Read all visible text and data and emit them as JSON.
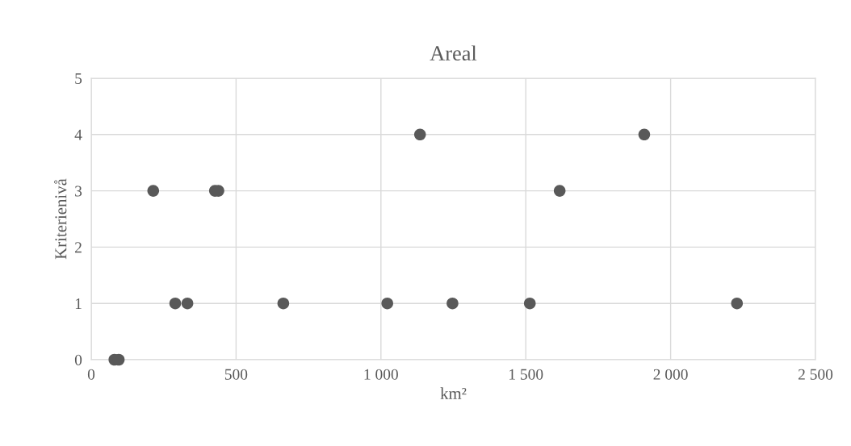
{
  "chart_data": {
    "type": "scatter",
    "title": "Areal",
    "xlabel": "km²",
    "ylabel": "Kriterienivå",
    "x": [
      80,
      95,
      214,
      427,
      439,
      290,
      332,
      663,
      1022,
      1135,
      1909,
      1617,
      1247,
      1514,
      2229
    ],
    "values": [
      0,
      0,
      3,
      3,
      3,
      1,
      1,
      1,
      1,
      4,
      4,
      3,
      1,
      1,
      1
    ],
    "color": "#595959",
    "marker": "circle",
    "xlim": [
      0,
      2500
    ],
    "xticks": [
      0,
      {
        "value": 500,
        "label": "500"
      },
      {
        "value": 1000,
        "label": "1 000"
      },
      {
        "value": 1500,
        "label": "1 500"
      },
      {
        "value": 2000,
        "label": "2 000"
      },
      {
        "value": 2500,
        "label": "2 500"
      }
    ],
    "ylim": [
      0,
      5
    ],
    "yticks": [
      0,
      1,
      2,
      3,
      4,
      5
    ],
    "grid": true,
    "legend": false
  }
}
